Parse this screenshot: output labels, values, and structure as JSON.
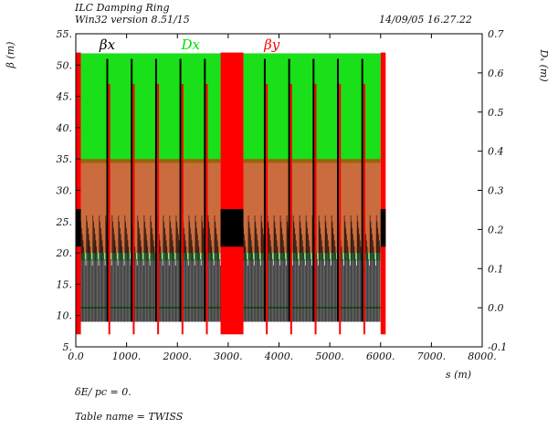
{
  "header": {
    "title": "ILC Damping Ring",
    "version": "Win32 version 8.51/15",
    "datetime": "14/09/05  16.27.22"
  },
  "footer": {
    "delta_line": "δE/ pc =  0.",
    "table_line": "Table name = TWISS"
  },
  "colors": {
    "beta_x": "#000000",
    "beta_y": "#ff0000",
    "dx": "#00dd00"
  },
  "chart_data": {
    "type": "line",
    "title": "ILC Damping Ring",
    "xlabel": "s (m)",
    "ylabel_left": "β (m)",
    "ylabel_right": "Dₓ (m)",
    "xlim": [
      0,
      8000
    ],
    "ylim_left": [
      5,
      55
    ],
    "ylim_right": [
      -0.1,
      0.7
    ],
    "x_ticks": [
      "0.0",
      "1000.",
      "2000.",
      "3000.",
      "4000.",
      "5000.",
      "6000.",
      "7000.",
      "8000."
    ],
    "y_left_ticks": [
      "5.",
      "10.",
      "15.",
      "20.",
      "25.",
      "30.",
      "35.",
      "40.",
      "45.",
      "50.",
      "55."
    ],
    "y_right_ticks": [
      "-0.1",
      "0.0",
      "0.1",
      "0.2",
      "0.3",
      "0.4",
      "0.5",
      "0.6",
      "0.7"
    ],
    "grid": false,
    "series": [
      {
        "name": "βx",
        "axis": "left",
        "color": "#000000",
        "description_ranges": {
          "min": 9,
          "max": 51
        },
        "arc_regions": [
          [
            100,
            2850
          ],
          [
            3300,
            6000
          ]
        ],
        "straights": [
          [
            0,
            100
          ],
          [
            2850,
            3300
          ],
          [
            6000,
            6100
          ]
        ],
        "straight_level": [
          21,
          27
        ]
      },
      {
        "name": "βy",
        "axis": "left",
        "color": "#ff0000",
        "description_ranges": {
          "min": 7,
          "max": 52
        },
        "arc_regions": [
          [
            100,
            2850
          ],
          [
            3300,
            6000
          ]
        ],
        "straights": [
          [
            0,
            100
          ],
          [
            2850,
            3300
          ],
          [
            6000,
            6100
          ]
        ]
      },
      {
        "name": "Dx",
        "axis": "right",
        "color": "#00dd00",
        "description_ranges": {
          "min": 0.0,
          "max": 0.65
        },
        "arc_regions": [
          [
            100,
            2850
          ],
          [
            3300,
            6000
          ]
        ]
      }
    ],
    "legend_labels": [
      {
        "text": "βx",
        "near_x": 620,
        "color": "#000000"
      },
      {
        "text": "Dx",
        "near_x": 2260,
        "color": "#00dd00"
      },
      {
        "text": "βy",
        "near_x": 3860,
        "color": "#ff0000"
      }
    ],
    "cell_peaks_s": [
      620,
      1100,
      1580,
      2060,
      2540,
      3720,
      4200,
      4680,
      5160,
      5640
    ]
  }
}
